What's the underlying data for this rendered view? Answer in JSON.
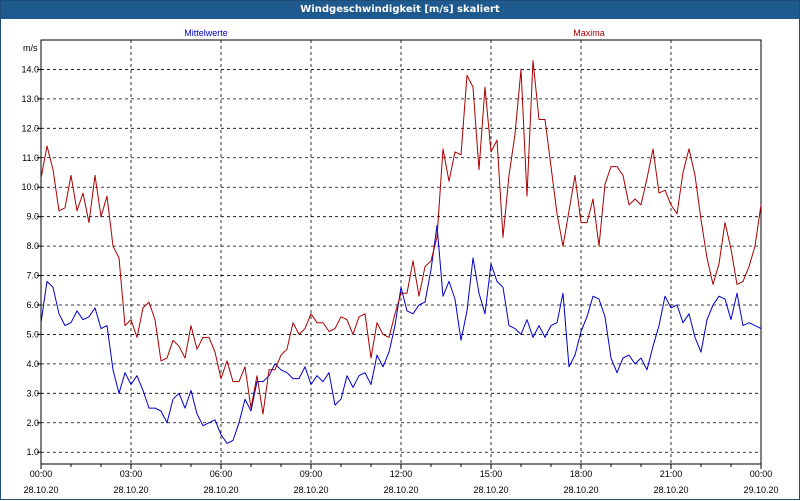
{
  "window": {
    "title": "Windgeschwindigkeit [m/s] skaliert"
  },
  "colors": {
    "mean_series": "#0000cc",
    "max_series": "#aa0000",
    "grid": "#000000",
    "titlebar": "#1f5a8e"
  },
  "chart_data": {
    "type": "line",
    "title": "Windgeschwindigkeit [m/s] skaliert",
    "ylabel": "m/s",
    "xlabel": "",
    "ylim": [
      0.6,
      15.0
    ],
    "yticks": [
      "1.0",
      "2.0",
      "3.0",
      "4.0",
      "5.0",
      "6.0",
      "7.0",
      "8.0",
      "9.0",
      "10.0",
      "11.0",
      "12.0",
      "13.0",
      "14.0"
    ],
    "xticks": [
      {
        "time": "00:00",
        "date": "28.10.20"
      },
      {
        "time": "03:00",
        "date": "28.10.20"
      },
      {
        "time": "06:00",
        "date": "28.10.20"
      },
      {
        "time": "09:00",
        "date": "28.10.20"
      },
      {
        "time": "12:00",
        "date": "28.10.20"
      },
      {
        "time": "15:00",
        "date": "28.10.20"
      },
      {
        "time": "18:00",
        "date": "28.10.20"
      },
      {
        "time": "21:00",
        "date": "28.10.20"
      },
      {
        "time": "00:00",
        "date": "29.10.20"
      }
    ],
    "grid": true,
    "series": [
      {
        "name": "Mittelwerte",
        "values": [
          [
            0.0,
            5.4
          ],
          [
            0.2,
            6.8
          ],
          [
            0.4,
            6.6
          ],
          [
            0.6,
            5.7
          ],
          [
            0.8,
            5.3
          ],
          [
            1.0,
            5.4
          ],
          [
            1.2,
            5.8
          ],
          [
            1.4,
            5.5
          ],
          [
            1.6,
            5.6
          ],
          [
            1.8,
            5.9
          ],
          [
            2.0,
            5.2
          ],
          [
            2.2,
            5.3
          ],
          [
            2.4,
            3.8
          ],
          [
            2.6,
            3.0
          ],
          [
            2.8,
            3.7
          ],
          [
            3.0,
            3.3
          ],
          [
            3.2,
            3.6
          ],
          [
            3.4,
            3.1
          ],
          [
            3.6,
            2.5
          ],
          [
            3.8,
            2.5
          ],
          [
            4.0,
            2.4
          ],
          [
            4.2,
            2.0
          ],
          [
            4.4,
            2.8
          ],
          [
            4.6,
            3.0
          ],
          [
            4.8,
            2.5
          ],
          [
            5.0,
            3.1
          ],
          [
            5.2,
            2.3
          ],
          [
            5.4,
            1.9
          ],
          [
            5.6,
            2.0
          ],
          [
            5.8,
            2.1
          ],
          [
            6.0,
            1.6
          ],
          [
            6.2,
            1.3
          ],
          [
            6.4,
            1.4
          ],
          [
            6.6,
            2.0
          ],
          [
            6.8,
            2.8
          ],
          [
            7.0,
            2.4
          ],
          [
            7.2,
            3.4
          ],
          [
            7.4,
            3.4
          ],
          [
            7.6,
            3.6
          ],
          [
            7.8,
            4.0
          ],
          [
            8.0,
            3.8
          ],
          [
            8.2,
            3.7
          ],
          [
            8.4,
            3.5
          ],
          [
            8.6,
            3.5
          ],
          [
            8.8,
            3.9
          ],
          [
            9.0,
            3.3
          ],
          [
            9.2,
            3.6
          ],
          [
            9.4,
            3.4
          ],
          [
            9.6,
            3.7
          ],
          [
            9.8,
            2.6
          ],
          [
            10.0,
            2.8
          ],
          [
            10.2,
            3.6
          ],
          [
            10.4,
            3.2
          ],
          [
            10.6,
            3.6
          ],
          [
            10.8,
            3.7
          ],
          [
            11.0,
            3.3
          ],
          [
            11.2,
            4.3
          ],
          [
            11.4,
            3.9
          ],
          [
            11.6,
            4.4
          ],
          [
            11.8,
            5.3
          ],
          [
            12.0,
            6.6
          ],
          [
            12.2,
            5.8
          ],
          [
            12.4,
            5.7
          ],
          [
            12.6,
            6.0
          ],
          [
            12.8,
            6.1
          ],
          [
            13.0,
            7.2
          ],
          [
            13.2,
            8.7
          ],
          [
            13.4,
            6.3
          ],
          [
            13.6,
            6.8
          ],
          [
            13.8,
            6.2
          ],
          [
            14.0,
            4.8
          ],
          [
            14.2,
            5.8
          ],
          [
            14.4,
            7.6
          ],
          [
            14.6,
            6.4
          ],
          [
            14.8,
            5.7
          ],
          [
            15.0,
            7.4
          ],
          [
            15.2,
            6.8
          ],
          [
            15.4,
            6.6
          ],
          [
            15.6,
            5.3
          ],
          [
            15.8,
            5.2
          ],
          [
            16.0,
            5.0
          ],
          [
            16.2,
            5.5
          ],
          [
            16.4,
            4.9
          ],
          [
            16.6,
            5.3
          ],
          [
            16.8,
            4.9
          ],
          [
            17.0,
            5.3
          ],
          [
            17.2,
            5.4
          ],
          [
            17.4,
            6.4
          ],
          [
            17.6,
            3.9
          ],
          [
            17.8,
            4.3
          ],
          [
            18.0,
            5.1
          ],
          [
            18.2,
            5.6
          ],
          [
            18.4,
            6.3
          ],
          [
            18.6,
            6.2
          ],
          [
            18.8,
            5.6
          ],
          [
            19.0,
            4.2
          ],
          [
            19.2,
            3.7
          ],
          [
            19.4,
            4.2
          ],
          [
            19.6,
            4.3
          ],
          [
            19.8,
            4.0
          ],
          [
            20.0,
            4.2
          ],
          [
            20.2,
            3.8
          ],
          [
            20.4,
            4.6
          ],
          [
            20.6,
            5.3
          ],
          [
            20.8,
            6.3
          ],
          [
            21.0,
            5.9
          ],
          [
            21.2,
            6.0
          ],
          [
            21.4,
            5.4
          ],
          [
            21.6,
            5.7
          ],
          [
            21.8,
            4.9
          ],
          [
            22.0,
            4.4
          ],
          [
            22.2,
            5.5
          ],
          [
            22.4,
            6.0
          ],
          [
            22.6,
            6.3
          ],
          [
            22.8,
            6.2
          ],
          [
            23.0,
            5.5
          ],
          [
            23.2,
            6.4
          ],
          [
            23.4,
            5.3
          ],
          [
            23.6,
            5.4
          ],
          [
            23.8,
            5.3
          ],
          [
            24.0,
            5.2
          ]
        ]
      },
      {
        "name": "Maxima",
        "values": [
          [
            0.0,
            10.3
          ],
          [
            0.2,
            11.4
          ],
          [
            0.4,
            10.6
          ],
          [
            0.6,
            9.2
          ],
          [
            0.8,
            9.3
          ],
          [
            1.0,
            10.4
          ],
          [
            1.2,
            9.2
          ],
          [
            1.4,
            9.8
          ],
          [
            1.6,
            8.8
          ],
          [
            1.8,
            10.4
          ],
          [
            2.0,
            9.0
          ],
          [
            2.2,
            9.7
          ],
          [
            2.4,
            8.0
          ],
          [
            2.6,
            7.6
          ],
          [
            2.8,
            5.3
          ],
          [
            3.0,
            5.5
          ],
          [
            3.2,
            4.9
          ],
          [
            3.4,
            5.9
          ],
          [
            3.6,
            6.1
          ],
          [
            3.8,
            5.5
          ],
          [
            4.0,
            4.1
          ],
          [
            4.2,
            4.2
          ],
          [
            4.4,
            4.8
          ],
          [
            4.6,
            4.6
          ],
          [
            4.8,
            4.2
          ],
          [
            5.0,
            5.3
          ],
          [
            5.2,
            4.5
          ],
          [
            5.4,
            4.9
          ],
          [
            5.6,
            4.9
          ],
          [
            5.8,
            4.4
          ],
          [
            6.0,
            3.5
          ],
          [
            6.2,
            4.1
          ],
          [
            6.4,
            3.4
          ],
          [
            6.6,
            3.4
          ],
          [
            6.8,
            3.9
          ],
          [
            7.0,
            2.5
          ],
          [
            7.2,
            3.6
          ],
          [
            7.4,
            2.3
          ],
          [
            7.6,
            3.8
          ],
          [
            7.8,
            3.8
          ],
          [
            8.0,
            4.3
          ],
          [
            8.2,
            4.5
          ],
          [
            8.4,
            5.4
          ],
          [
            8.6,
            5.0
          ],
          [
            8.8,
            5.2
          ],
          [
            9.0,
            5.7
          ],
          [
            9.2,
            5.4
          ],
          [
            9.4,
            5.4
          ],
          [
            9.6,
            5.1
          ],
          [
            9.8,
            5.2
          ],
          [
            10.0,
            5.6
          ],
          [
            10.2,
            5.5
          ],
          [
            10.4,
            5.0
          ],
          [
            10.6,
            5.6
          ],
          [
            10.8,
            5.7
          ],
          [
            11.0,
            4.2
          ],
          [
            11.2,
            5.4
          ],
          [
            11.4,
            5.0
          ],
          [
            11.6,
            4.9
          ],
          [
            11.8,
            5.7
          ],
          [
            12.0,
            6.4
          ],
          [
            12.2,
            6.4
          ],
          [
            12.4,
            7.5
          ],
          [
            12.6,
            6.3
          ],
          [
            12.8,
            7.3
          ],
          [
            13.0,
            7.5
          ],
          [
            13.2,
            8.3
          ],
          [
            13.4,
            11.3
          ],
          [
            13.6,
            10.2
          ],
          [
            13.8,
            11.2
          ],
          [
            14.0,
            11.1
          ],
          [
            14.2,
            13.8
          ],
          [
            14.4,
            13.4
          ],
          [
            14.6,
            10.6
          ],
          [
            14.8,
            13.4
          ],
          [
            15.0,
            11.2
          ],
          [
            15.2,
            11.6
          ],
          [
            15.4,
            8.3
          ],
          [
            15.6,
            10.4
          ],
          [
            15.8,
            11.8
          ],
          [
            16.0,
            14.0
          ],
          [
            16.2,
            9.7
          ],
          [
            16.4,
            14.3
          ],
          [
            16.6,
            12.3
          ],
          [
            16.8,
            12.3
          ],
          [
            17.0,
            10.7
          ],
          [
            17.2,
            9.1
          ],
          [
            17.4,
            8.0
          ],
          [
            17.6,
            9.2
          ],
          [
            17.8,
            10.4
          ],
          [
            18.0,
            8.8
          ],
          [
            18.2,
            8.8
          ],
          [
            18.4,
            9.6
          ],
          [
            18.6,
            8.0
          ],
          [
            18.8,
            10.1
          ],
          [
            19.0,
            10.7
          ],
          [
            19.2,
            10.7
          ],
          [
            19.4,
            10.4
          ],
          [
            19.6,
            9.4
          ],
          [
            19.8,
            9.6
          ],
          [
            20.0,
            9.4
          ],
          [
            20.2,
            10.3
          ],
          [
            20.4,
            11.3
          ],
          [
            20.6,
            9.8
          ],
          [
            20.8,
            9.9
          ],
          [
            21.0,
            9.4
          ],
          [
            21.2,
            9.1
          ],
          [
            21.4,
            10.5
          ],
          [
            21.6,
            11.3
          ],
          [
            21.8,
            10.4
          ],
          [
            22.0,
            8.9
          ],
          [
            22.2,
            7.6
          ],
          [
            22.4,
            6.7
          ],
          [
            22.6,
            7.4
          ],
          [
            22.8,
            8.8
          ],
          [
            23.0,
            7.9
          ],
          [
            23.2,
            6.7
          ],
          [
            23.4,
            6.8
          ],
          [
            23.6,
            7.3
          ],
          [
            23.8,
            8.0
          ],
          [
            24.0,
            9.4
          ]
        ]
      }
    ]
  }
}
